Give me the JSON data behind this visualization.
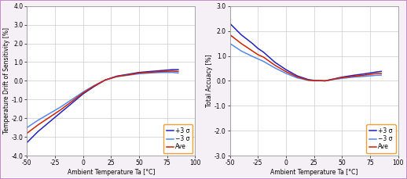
{
  "left": {
    "ylabel": "Temperature Drift of Sensitivity [%]",
    "xlabel": "Ambient Temperature Ta [°C]",
    "xlim": [
      -50,
      100
    ],
    "ylim": [
      -4.0,
      4.0
    ],
    "yticks": [
      -4.0,
      -3.0,
      -2.0,
      -1.0,
      0.0,
      1.0,
      2.0,
      3.0,
      4.0
    ],
    "xticks": [
      -50,
      -25,
      0,
      25,
      50,
      75,
      100
    ],
    "x": [
      -50,
      -40,
      -30,
      -20,
      -10,
      0,
      10,
      20,
      25,
      30,
      40,
      50,
      60,
      70,
      80,
      85
    ],
    "plus3sigma": [
      -3.3,
      -2.7,
      -2.2,
      -1.7,
      -1.2,
      -0.7,
      -0.3,
      0.05,
      0.15,
      0.25,
      0.35,
      0.45,
      0.5,
      0.55,
      0.6,
      0.6
    ],
    "minus3sigma": [
      -2.5,
      -2.1,
      -1.75,
      -1.4,
      -1.0,
      -0.6,
      -0.25,
      0.05,
      0.13,
      0.22,
      0.3,
      0.38,
      0.42,
      0.45,
      0.45,
      0.42
    ],
    "ave": [
      -2.8,
      -2.35,
      -1.95,
      -1.55,
      -1.1,
      -0.65,
      -0.27,
      0.05,
      0.14,
      0.23,
      0.32,
      0.42,
      0.46,
      0.5,
      0.52,
      0.5
    ],
    "color_plus": "#2222bb",
    "color_minus": "#5588ee",
    "color_ave": "#cc2200",
    "legend_plus": "+3 σ",
    "legend_minus": "−3 σ",
    "legend_ave": "Ave"
  },
  "right": {
    "ylabel": "Total Accuacy [%]",
    "xlabel": "Ambient Temperature Ta [°C]",
    "xlim": [
      -50,
      100
    ],
    "ylim": [
      -3.0,
      3.0
    ],
    "yticks": [
      -3.0,
      -2.0,
      -1.0,
      0.0,
      1.0,
      2.0,
      3.0
    ],
    "xticks": [
      -50,
      -25,
      0,
      25,
      50,
      75,
      100
    ],
    "x": [
      -50,
      -40,
      -30,
      -25,
      -20,
      -10,
      0,
      10,
      20,
      25,
      30,
      35,
      40,
      45,
      50,
      60,
      70,
      80,
      85
    ],
    "plus3sigma": [
      2.3,
      1.85,
      1.5,
      1.3,
      1.15,
      0.75,
      0.45,
      0.2,
      0.05,
      0.02,
      0.01,
      0.0,
      0.05,
      0.1,
      0.15,
      0.22,
      0.28,
      0.35,
      0.38
    ],
    "minus3sigma": [
      1.5,
      1.2,
      0.98,
      0.88,
      0.78,
      0.52,
      0.3,
      0.12,
      0.02,
      0.0,
      0.0,
      0.0,
      0.04,
      0.07,
      0.1,
      0.15,
      0.18,
      0.22,
      0.23
    ],
    "ave": [
      1.85,
      1.5,
      1.2,
      1.05,
      0.95,
      0.63,
      0.37,
      0.16,
      0.03,
      0.01,
      0.01,
      0.0,
      0.04,
      0.09,
      0.13,
      0.18,
      0.23,
      0.29,
      0.3
    ],
    "color_plus": "#2222bb",
    "color_minus": "#5588ee",
    "color_ave": "#cc2200",
    "legend_plus": "+3 σ",
    "legend_minus": "−3 σ",
    "legend_ave": "Ave"
  },
  "fig_bg": "#f5f0f5",
  "plot_bg": "#ffffff",
  "grid_color": "#cccccc",
  "border_color": "#999999",
  "legend_edge_color": "#ee8800",
  "outer_border_color": "#cc88cc",
  "label_fontsize": 5.5,
  "tick_fontsize": 5.5,
  "legend_fontsize": 5.5,
  "linewidth": 1.1
}
